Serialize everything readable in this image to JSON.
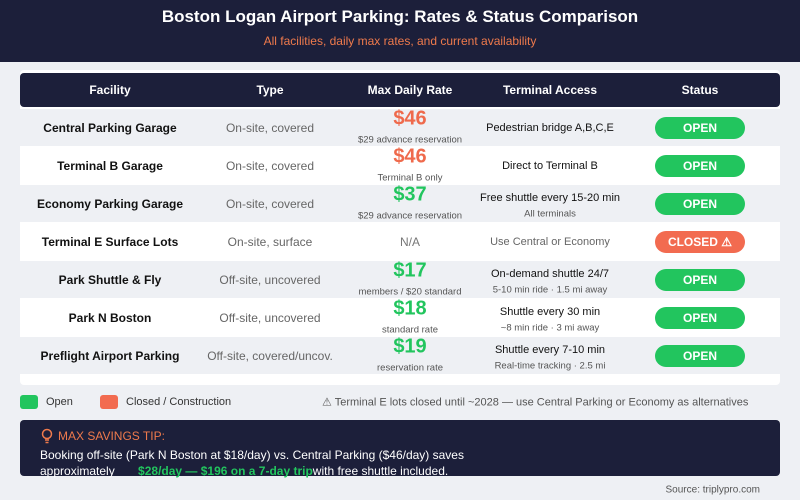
{
  "header": {
    "title": "Boston Logan Airport Parking: Rates & Status Comparison",
    "subtitle": "All facilities, daily max rates, and current availability"
  },
  "table": {
    "columns": [
      "Facility",
      "Type",
      "Max Daily Rate",
      "Terminal Access",
      "Status"
    ],
    "rows": [
      {
        "facility": "Central Parking Garage",
        "type": "On-site, covered",
        "rate": "$46",
        "rate_color": "#ef6a4c",
        "rate_note": "$29 advance reservation",
        "access": "Pedestrian bridge A,B,C,E",
        "status": "OPEN",
        "status_color": "#22c55e"
      },
      {
        "facility": "Terminal B Garage",
        "type": "On-site, covered",
        "rate": "$46",
        "rate_color": "#ef6a4c",
        "rate_note": "Terminal B only",
        "access": "Direct to Terminal B",
        "status": "OPEN",
        "status_color": "#22c55e"
      },
      {
        "facility": "Economy Parking Garage",
        "type": "On-site, covered",
        "rate": "$37",
        "rate_color": "#22c55e",
        "rate_note": "$29 advance reservation",
        "access": "Free shuttle every 15-20 min",
        "access_note": "All terminals",
        "status": "OPEN",
        "status_color": "#22c55e"
      },
      {
        "facility": "Terminal E Surface Lots",
        "type": "On-site, surface",
        "rate": "N/A",
        "rate_color": "#777777",
        "access": "Use Central or Economy",
        "access_color": "#666666",
        "status": "CLOSED ⚠",
        "status_color": "#f26b50"
      },
      {
        "facility": "Park Shuttle & Fly",
        "type": "Off-site, uncovered",
        "rate": "$17",
        "rate_color": "#22c55e",
        "rate_note": "members / $20 standard",
        "access": "On-demand shuttle 24/7",
        "access_note": "5-10 min ride · 1.5 mi away",
        "status": "OPEN",
        "status_color": "#22c55e"
      },
      {
        "facility": "Park N Boston",
        "type": "Off-site, uncovered",
        "rate": "$18",
        "rate_color": "#22c55e",
        "rate_note": "standard rate",
        "access": "Shuttle every 30 min",
        "access_note": "~8 min ride · 3 mi away",
        "status": "OPEN",
        "status_color": "#22c55e"
      },
      {
        "facility": "Preflight Airport Parking",
        "type": "Off-site, covered/uncov.",
        "rate": "$19",
        "rate_color": "#22c55e",
        "rate_note": "reservation rate",
        "access": "Shuttle every 7-10 min",
        "access_note": "Real-time tracking · 2.5 mi",
        "status": "OPEN",
        "status_color": "#22c55e"
      }
    ]
  },
  "legend": {
    "items": [
      {
        "label": "Open",
        "color": "#22c55e"
      },
      {
        "label": "Closed / Construction",
        "color": "#f26b50"
      }
    ],
    "note": "⚠ Terminal E lots closed until ~2028 — use Central Parking or Economy as alternatives"
  },
  "tip": {
    "label": "MAX SAVINGS TIP:",
    "text_before": "Booking off-site (Park N Boston at $18/day) vs. Central Parking ($46/day) saves approximately",
    "highlight": "$28/day — $196 on a 7-day trip",
    "text_after": "with free shuttle included."
  },
  "source": "Source: triplypro.com"
}
